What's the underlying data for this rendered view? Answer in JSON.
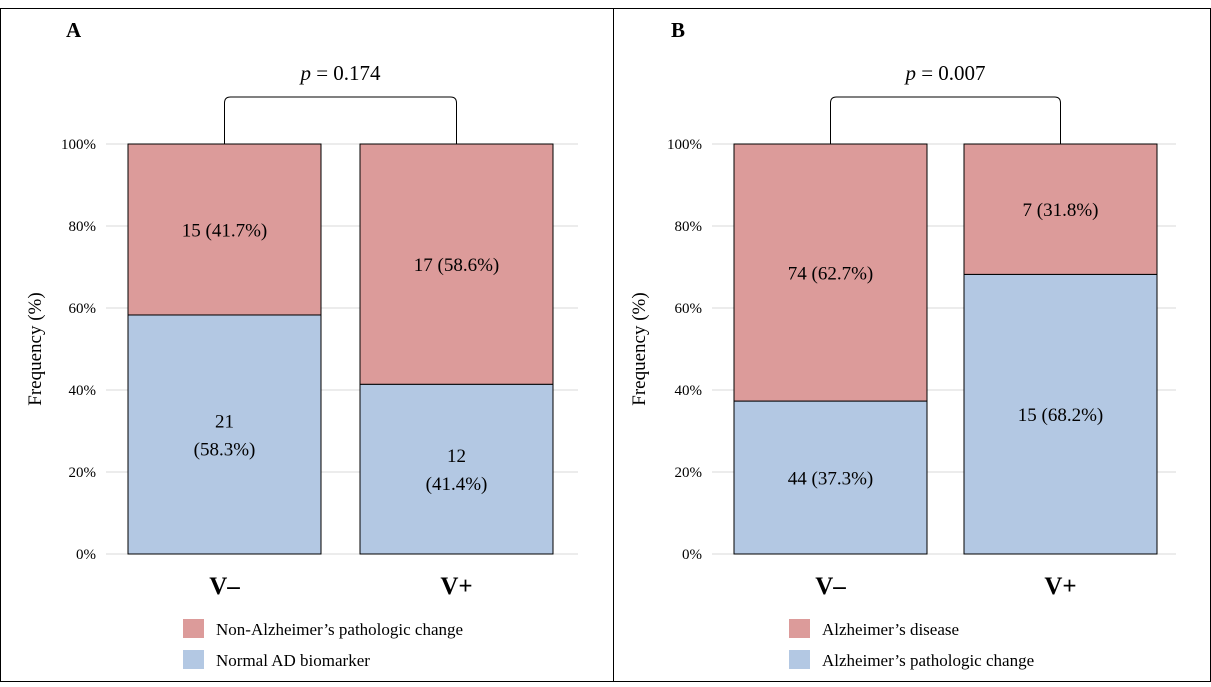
{
  "chart_data": [
    {
      "type": "bar",
      "stacked": true,
      "panel_label": "A",
      "title": "",
      "xlabel": "",
      "ylabel": "Frequency (%)",
      "ylim": [
        0,
        100
      ],
      "yticks": [
        "0%",
        "20%",
        "40%",
        "60%",
        "80%",
        "100%"
      ],
      "grid": true,
      "legend_position": "bottom",
      "categories": [
        "V–",
        "V+"
      ],
      "comparison": {
        "label_prefix": "p",
        "label_suffix": " = 0.174"
      },
      "series": [
        {
          "name": "Normal AD biomarker",
          "color": "#b3c8e3",
          "values": [
            58.3,
            41.4
          ],
          "labels": [
            [
              "21",
              "(58.3%)"
            ],
            [
              "12",
              "(41.4%)"
            ]
          ]
        },
        {
          "name": "Non-Alzheimer’s pathologic change",
          "color": "#dc9b9a",
          "values": [
            41.7,
            58.6
          ],
          "labels": [
            [
              "15 (41.7%)"
            ],
            [
              "17 (58.6%)"
            ]
          ]
        }
      ]
    },
    {
      "type": "bar",
      "stacked": true,
      "panel_label": "B",
      "title": "",
      "xlabel": "",
      "ylabel": "Frequency (%)",
      "ylim": [
        0,
        100
      ],
      "yticks": [
        "0%",
        "20%",
        "40%",
        "60%",
        "80%",
        "100%"
      ],
      "grid": true,
      "legend_position": "bottom",
      "categories": [
        "V–",
        "V+"
      ],
      "comparison": {
        "label_prefix": "p",
        "label_suffix": " = 0.007"
      },
      "series": [
        {
          "name": "Alzheimer’s pathologic change",
          "color": "#b3c8e3",
          "values": [
            37.3,
            68.2
          ],
          "labels": [
            [
              "44 (37.3%)"
            ],
            [
              "15 (68.2%)"
            ]
          ]
        },
        {
          "name": "Alzheimer’s disease",
          "color": "#dc9b9a",
          "values": [
            62.7,
            31.8
          ],
          "labels": [
            [
              "74 (62.7%)"
            ],
            [
              "7 (31.8%)"
            ]
          ]
        }
      ]
    }
  ]
}
